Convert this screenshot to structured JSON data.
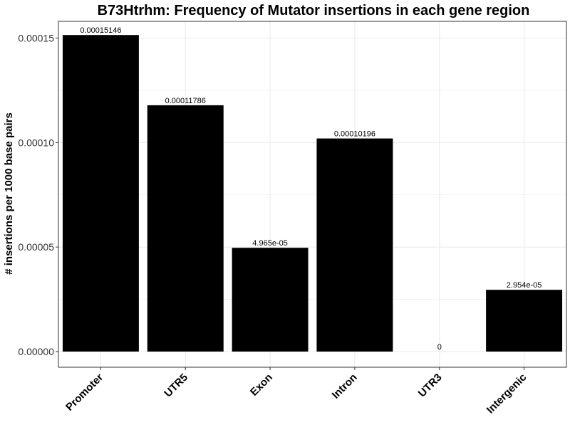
{
  "chart_data": {
    "type": "bar",
    "title": "B73Htrhm: Frequency of Mutator insertions in each gene region",
    "xlabel": "",
    "ylabel": "# insertions per 1000 base pairs",
    "categories": [
      "Promoter",
      "UTR5",
      "Exon",
      "Intron",
      "UTR3",
      "Intergenic"
    ],
    "values": [
      0.00015146,
      0.00011786,
      4.965e-05,
      0.00010196,
      0,
      2.954e-05
    ],
    "value_labels": [
      "0.00015146",
      "0.00011786",
      "4.965e-05",
      "0.00010196",
      "0",
      "2.954e-05"
    ],
    "y_ticks": [
      0,
      5e-05,
      0.0001,
      0.00015
    ],
    "y_tick_labels": [
      "0.00000",
      "0.00005",
      "0.00010",
      "0.00015"
    ],
    "ylim": [
      0,
      0.000159
    ],
    "grid": true,
    "bar_color": "#000000",
    "grid_color": "#ebebeb",
    "panel_border_color": "#333333"
  }
}
